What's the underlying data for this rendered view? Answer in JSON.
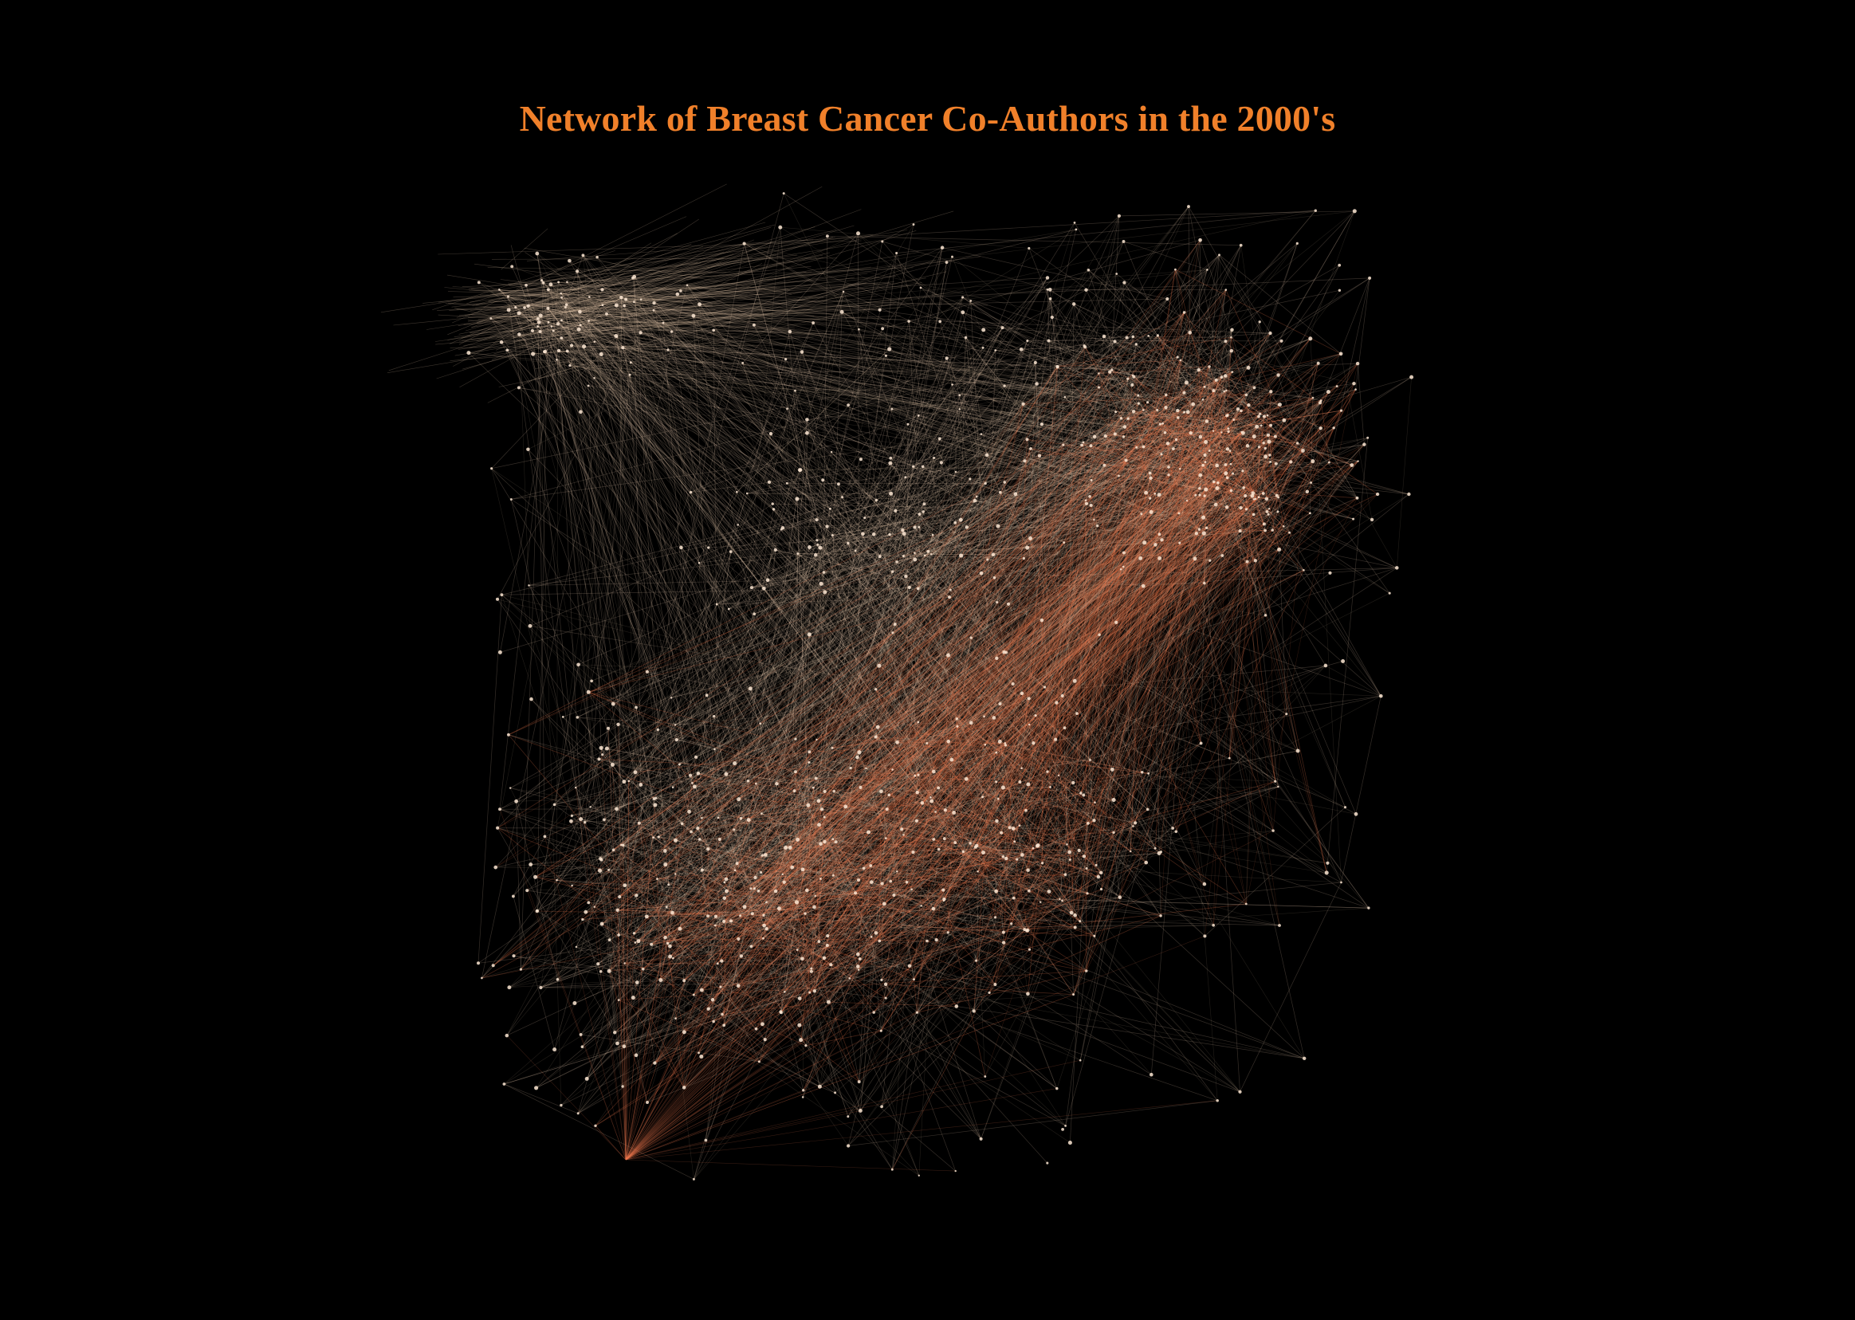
{
  "title": "Network of Breast Cancer Co-Authors in the 2000's",
  "colors": {
    "background": "#000000",
    "title": "#f0802a",
    "edge_light": "#f3d2b4",
    "edge_dense": "#f07a50",
    "node": "#fbe6d2"
  }
}
